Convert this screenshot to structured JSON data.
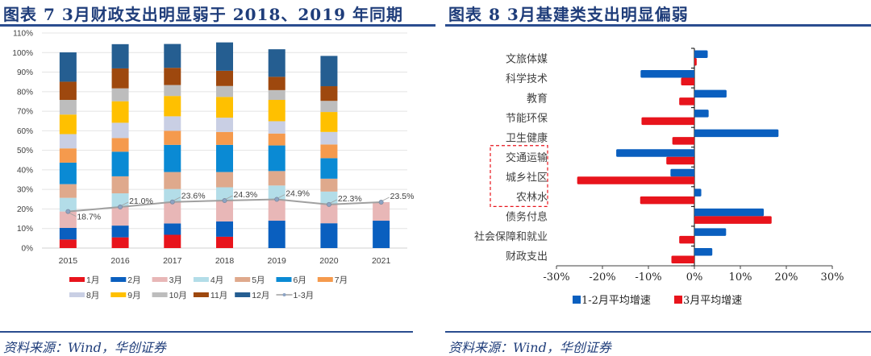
{
  "left": {
    "title": "图表 7   3月财政支出明显弱于 2018、2019 年同期",
    "source": "资料来源：Wind，华创证券"
  },
  "right": {
    "title": "图表 8     3月基建类支出明显偏弱",
    "source": "资料来源：Wind，华创证券"
  },
  "chart_data": [
    {
      "type": "bar",
      "stacked": true,
      "title": "3月财政支出明显弱于 2018、2019 年同期",
      "categories": [
        "2015",
        "2016",
        "2017",
        "2018",
        "2019",
        "2020",
        "2021"
      ],
      "ylim": [
        0,
        110
      ],
      "yticks": [
        "0%",
        "10%",
        "20%",
        "30%",
        "40%",
        "50%",
        "60%",
        "70%",
        "80%",
        "90%",
        "100%",
        "110%"
      ],
      "grid": true,
      "legend_position": "bottom",
      "series": [
        {
          "name": "1月",
          "color": "#e8141c",
          "values": [
            4.4,
            5.5,
            6.8,
            5.8,
            0,
            0,
            0
          ]
        },
        {
          "name": "2月",
          "color": "#0a5fbf",
          "values": [
            5.9,
            6.0,
            5.8,
            7.8,
            14.0,
            12.7,
            14.0
          ]
        },
        {
          "name": "3月",
          "color": "#e8b7b7",
          "values": [
            8.4,
            9.5,
            11.0,
            10.7,
            10.9,
            9.6,
            9.5
          ]
        },
        {
          "name": "4月",
          "color": "#b3dde8",
          "values": [
            7.0,
            7.0,
            6.6,
            6.8,
            7.1,
            6.6,
            null
          ]
        },
        {
          "name": "5月",
          "color": "#dfa98c",
          "values": [
            7.0,
            8.7,
            8.7,
            7.8,
            7.4,
            6.6,
            null
          ]
        },
        {
          "name": "6月",
          "color": "#0a8ad4",
          "values": [
            11.0,
            12.6,
            13.9,
            13.9,
            13.1,
            10.5,
            null
          ]
        },
        {
          "name": "7月",
          "color": "#f59a4d",
          "values": [
            7.3,
            7.0,
            7.2,
            6.6,
            6.1,
            7.0,
            null
          ]
        },
        {
          "name": "8月",
          "color": "#c9cfe4",
          "values": [
            7.3,
            7.8,
            7.4,
            7.3,
            6.3,
            6.4,
            null
          ]
        },
        {
          "name": "9月",
          "color": "#ffc000",
          "values": [
            10.0,
            11.0,
            10.4,
            10.6,
            10.9,
            10.2,
            null
          ]
        },
        {
          "name": "10月",
          "color": "#bdbdbd",
          "values": [
            7.5,
            6.6,
            5.6,
            5.6,
            5.0,
            5.7,
            null
          ]
        },
        {
          "name": "11月",
          "color": "#9e480e",
          "values": [
            9.3,
            10.2,
            8.8,
            7.8,
            6.8,
            7.5,
            null
          ]
        },
        {
          "name": "12月",
          "color": "#255e91",
          "values": [
            15.0,
            12.4,
            12.2,
            14.5,
            14.1,
            15.5,
            null
          ]
        }
      ],
      "line_series": {
        "name": "1-3月",
        "color": "#a0a0a0",
        "values": [
          18.7,
          21.0,
          23.6,
          24.3,
          24.9,
          22.3,
          23.5
        ],
        "labels": [
          "18.7%",
          "21.0%",
          "23.6%",
          "24.3%",
          "24.9%",
          "22.3%",
          "23.5%"
        ]
      }
    },
    {
      "type": "bar",
      "orientation": "horizontal",
      "title": "3月基建类支出明显偏弱",
      "categories": [
        "文旅体媒",
        "科学技术",
        "教育",
        "节能环保",
        "卫生健康",
        "交通运输",
        "城乡社区",
        "农林水",
        "债务付息",
        "社会保障和就业",
        "财政支出"
      ],
      "highlighted_categories": [
        "交通运输",
        "城乡社区",
        "农林水"
      ],
      "xlim": [
        -30,
        30
      ],
      "xticks": [
        "-30%",
        "-20%",
        "-10%",
        "0%",
        "10%",
        "20%",
        "30%"
      ],
      "legend_position": "bottom",
      "series": [
        {
          "name": "1-2月平均增速",
          "color": "#0a5fbf",
          "values": [
            2.9,
            -11.7,
            7.0,
            3.1,
            18.3,
            -17.0,
            -5.2,
            1.5,
            15.1,
            6.9,
            3.9
          ]
        },
        {
          "name": "3月平均增速",
          "color": "#e8141c",
          "values": [
            0.5,
            -2.9,
            -3.3,
            -11.5,
            -4.8,
            -6.1,
            -25.5,
            -11.8,
            16.8,
            -3.3,
            -5.0
          ]
        }
      ]
    }
  ]
}
